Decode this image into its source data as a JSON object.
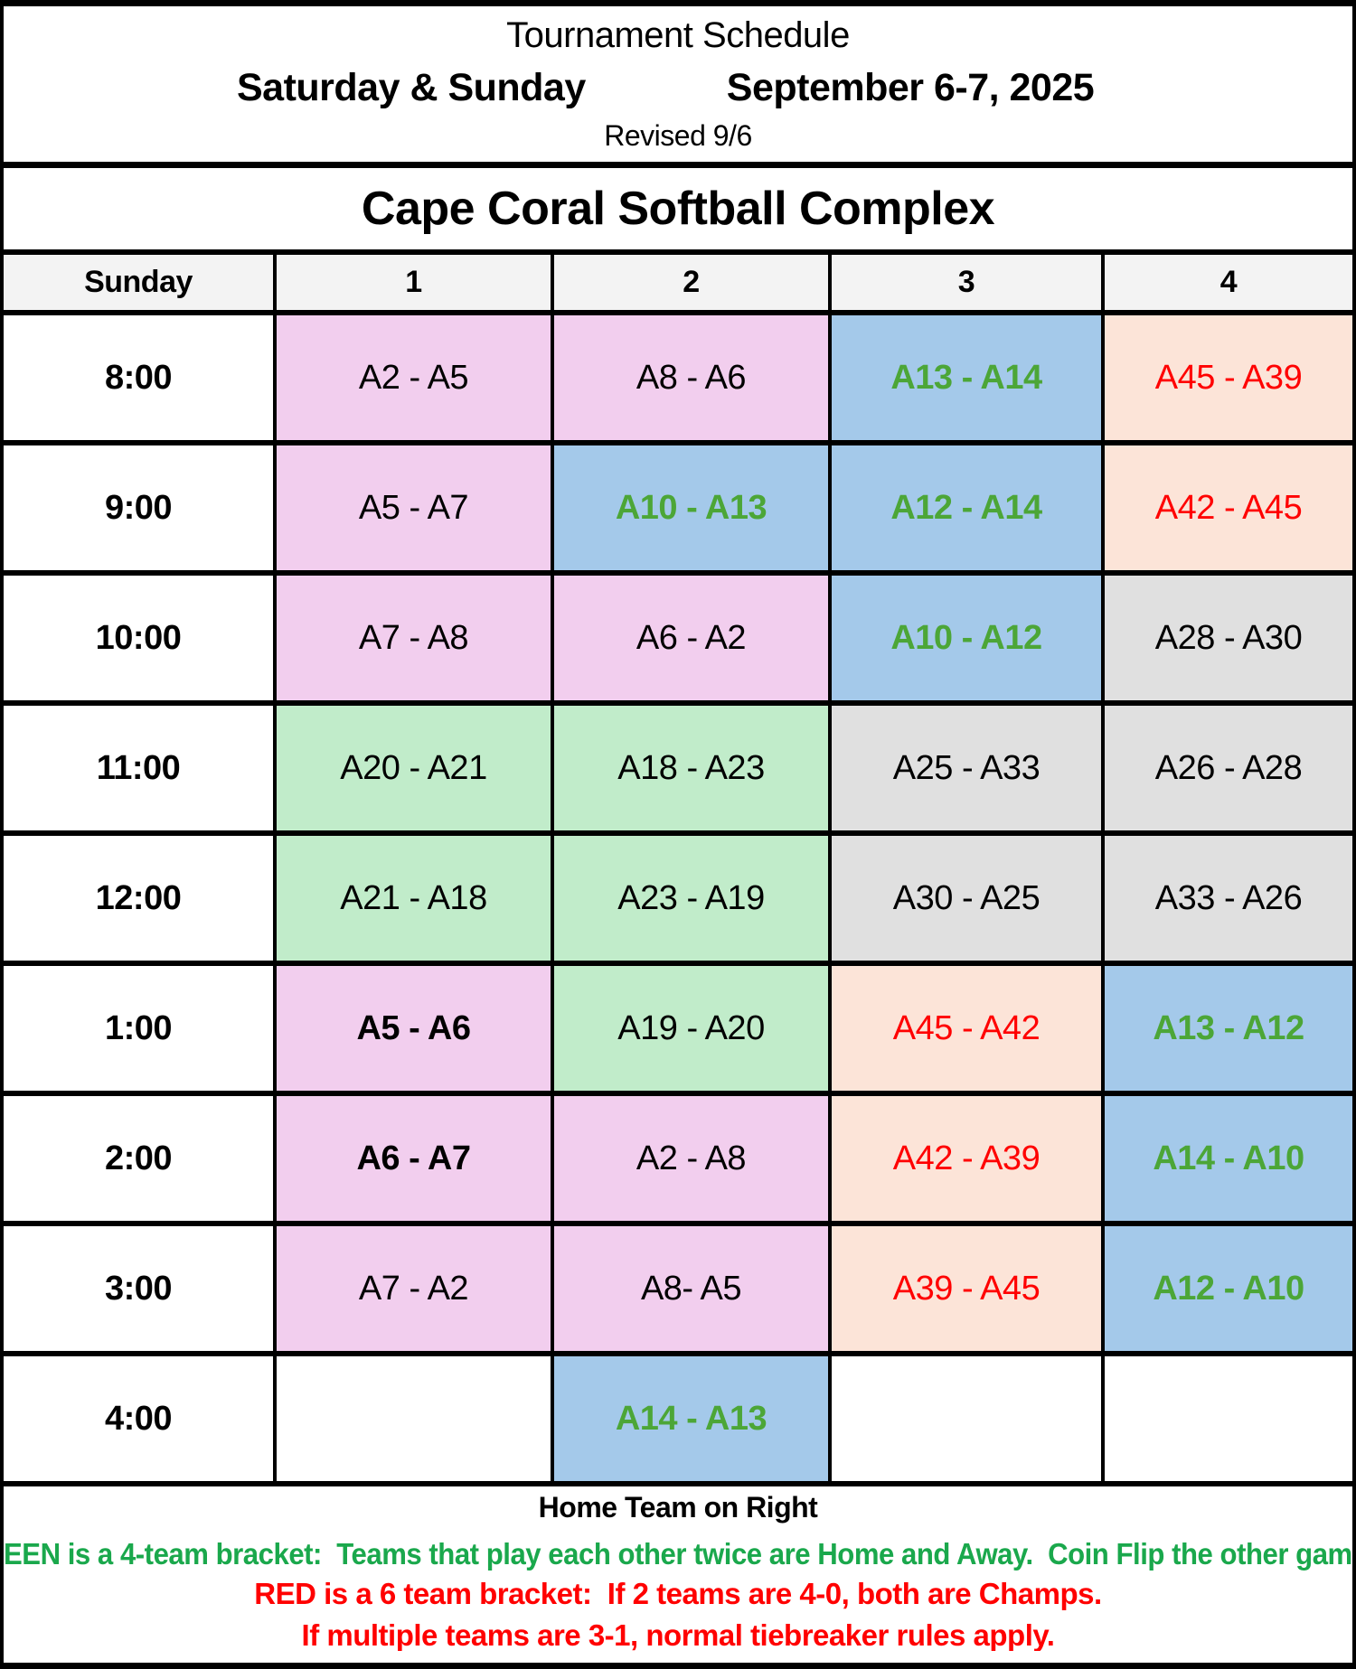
{
  "header": {
    "title": "Tournament Schedule",
    "days": "Saturday & Sunday",
    "dates": "September 6-7, 2025",
    "revised": "Revised 9/6",
    "venue": "Cape Coral Softball Complex"
  },
  "table": {
    "day_label": "Sunday",
    "field_headers": [
      "1",
      "2",
      "3",
      "4"
    ],
    "rows": [
      {
        "time": "8:00",
        "games": [
          {
            "text": "A2 - A5",
            "bg": "pink",
            "color": "black",
            "bold": false
          },
          {
            "text": "A8 - A6",
            "bg": "pink",
            "color": "black",
            "bold": false
          },
          {
            "text": "A13 - A14",
            "bg": "blue",
            "color": "green",
            "bold": true
          },
          {
            "text": "A45 - A39",
            "bg": "peach",
            "color": "red",
            "bold": false
          }
        ]
      },
      {
        "time": "9:00",
        "games": [
          {
            "text": "A5 - A7",
            "bg": "pink",
            "color": "black",
            "bold": false
          },
          {
            "text": "A10 - A13",
            "bg": "blue",
            "color": "green",
            "bold": true
          },
          {
            "text": "A12 - A14",
            "bg": "blue",
            "color": "green",
            "bold": true
          },
          {
            "text": "A42 - A45",
            "bg": "peach",
            "color": "red",
            "bold": false
          }
        ]
      },
      {
        "time": "10:00",
        "games": [
          {
            "text": "A7 - A8",
            "bg": "pink",
            "color": "black",
            "bold": false
          },
          {
            "text": "A6 - A2",
            "bg": "pink",
            "color": "black",
            "bold": false
          },
          {
            "text": "A10 - A12",
            "bg": "blue",
            "color": "green",
            "bold": true
          },
          {
            "text": "A28 - A30",
            "bg": "gray",
            "color": "black",
            "bold": false
          }
        ]
      },
      {
        "time": "11:00",
        "games": [
          {
            "text": "A20 - A21",
            "bg": "mint",
            "color": "black",
            "bold": false
          },
          {
            "text": "A18 - A23",
            "bg": "mint",
            "color": "black",
            "bold": false
          },
          {
            "text": "A25 - A33",
            "bg": "gray",
            "color": "black",
            "bold": false
          },
          {
            "text": "A26 - A28",
            "bg": "gray",
            "color": "black",
            "bold": false
          }
        ]
      },
      {
        "time": "12:00",
        "games": [
          {
            "text": "A21 - A18",
            "bg": "mint",
            "color": "black",
            "bold": false
          },
          {
            "text": "A23 - A19",
            "bg": "mint",
            "color": "black",
            "bold": false
          },
          {
            "text": "A30 - A25",
            "bg": "gray",
            "color": "black",
            "bold": false
          },
          {
            "text": "A33 - A26",
            "bg": "gray",
            "color": "black",
            "bold": false
          }
        ]
      },
      {
        "time": "1:00",
        "games": [
          {
            "text": "A5 - A6",
            "bg": "pink",
            "color": "black",
            "bold": true
          },
          {
            "text": "A19 - A20",
            "bg": "mint",
            "color": "black",
            "bold": false
          },
          {
            "text": "A45 - A42",
            "bg": "peach",
            "color": "red",
            "bold": false
          },
          {
            "text": "A13 - A12",
            "bg": "blue",
            "color": "green",
            "bold": true
          }
        ]
      },
      {
        "time": "2:00",
        "games": [
          {
            "text": "A6 - A7",
            "bg": "pink",
            "color": "black",
            "bold": true
          },
          {
            "text": "A2 - A8",
            "bg": "pink",
            "color": "black",
            "bold": false
          },
          {
            "text": "A42 - A39",
            "bg": "peach",
            "color": "red",
            "bold": false
          },
          {
            "text": "A14 - A10",
            "bg": "blue",
            "color": "green",
            "bold": true
          }
        ]
      },
      {
        "time": "3:00",
        "games": [
          {
            "text": "A7 - A2",
            "bg": "pink",
            "color": "black",
            "bold": false
          },
          {
            "text": "A8- A5",
            "bg": "pink",
            "color": "black",
            "bold": false
          },
          {
            "text": "A39 - A45",
            "bg": "peach",
            "color": "red",
            "bold": false
          },
          {
            "text": "A12 - A10",
            "bg": "blue",
            "color": "green",
            "bold": true
          }
        ]
      },
      {
        "time": "4:00",
        "games": [
          {
            "text": "",
            "bg": "white",
            "color": "black",
            "bold": false
          },
          {
            "text": "A14 - A13",
            "bg": "blue",
            "color": "green",
            "bold": true
          },
          {
            "text": "",
            "bg": "white",
            "color": "black",
            "bold": false
          },
          {
            "text": "",
            "bg": "white",
            "color": "black",
            "bold": false
          }
        ]
      }
    ]
  },
  "footer": {
    "home_note": "Home Team on Right",
    "green_note": "EEN is a 4-team bracket:  Teams that play each other twice are Home and Away.  Coin Flip the other gam",
    "red_note_1": "RED is a 6 team bracket:  If 2 teams are 4-0, both are Champs.",
    "red_note_2": "If multiple teams are 3-1, normal tiebreaker rules apply."
  },
  "colors": {
    "pink": "#F2CEEE",
    "blue": "#A4C9EA",
    "peach": "#FCE4D8",
    "mint": "#C1ECCA",
    "gray": "#E0E0E0",
    "header_bg": "#F3F3F3",
    "green_text": "#4CA637",
    "footer_green": "#1AA84C",
    "red": "#FF0000"
  }
}
